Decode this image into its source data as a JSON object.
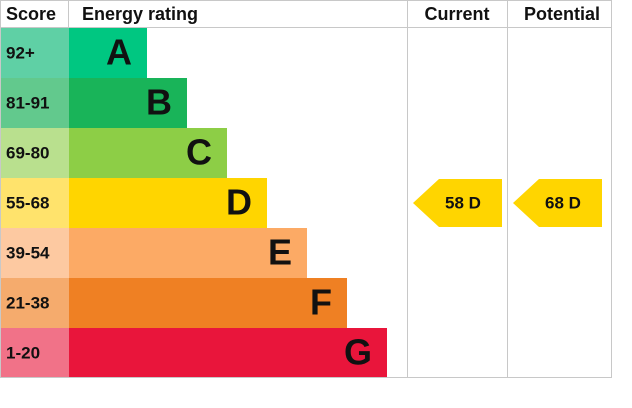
{
  "chart_data": {
    "type": "epc",
    "headers": {
      "score": "Score",
      "rating": "Energy rating",
      "current": "Current",
      "potential": "Potential"
    },
    "bands": [
      {
        "score": "92+",
        "letter": "A",
        "color": "#00c781",
        "light": "#5fd0a5"
      },
      {
        "score": "81-91",
        "letter": "B",
        "color": "#19b459",
        "light": "#62c98d"
      },
      {
        "score": "69-80",
        "letter": "C",
        "color": "#8dce46",
        "light": "#b9e08e"
      },
      {
        "score": "55-68",
        "letter": "D",
        "color": "#ffd500",
        "light": "#ffe36c"
      },
      {
        "score": "39-54",
        "letter": "E",
        "color": "#fcaa65",
        "light": "#fdc9a1"
      },
      {
        "score": "21-38",
        "letter": "F",
        "color": "#ef8023",
        "light": "#f5ab6d"
      },
      {
        "score": "1-20",
        "letter": "G",
        "color": "#e9153b",
        "light": "#f17288"
      }
    ],
    "current": {
      "value": 58,
      "label": "58 D",
      "color": "#ffd500"
    },
    "potential": {
      "value": 68,
      "label": "68 D",
      "color": "#ffd500"
    }
  }
}
